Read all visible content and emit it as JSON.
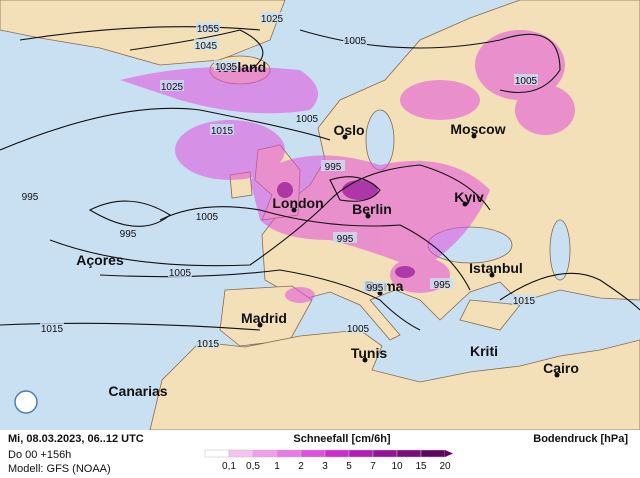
{
  "map": {
    "places": [
      "Iceland",
      "Oslo",
      "Moscow",
      "London",
      "Berlin",
      "Kyiv",
      "Açores",
      "Istanbul",
      "Roma",
      "Madrid",
      "Kriti",
      "Tunis",
      "Cairo",
      "Canarias"
    ],
    "isobar_labels": [
      "1055",
      "1045",
      "1025",
      "1035",
      "1025",
      "1005",
      "1015",
      "1005",
      "1005",
      "995",
      "995",
      "1005",
      "995",
      "995",
      "1005",
      "995",
      "995",
      "1015",
      "1005",
      "1015",
      "1015"
    ]
  },
  "footer": {
    "date": "Mi, 08.03.2023, 06..12 UTC",
    "run": "Do 00 +156h",
    "model": "Modell: GFS (NOAA)",
    "legend_title": "Schneefall [cm/6h]",
    "legend_labels": [
      "0,1",
      "0,5",
      "1",
      "2",
      "3",
      "5",
      "7",
      "10",
      "15",
      "20"
    ],
    "legend_colors": [
      "#ffffff",
      "#f7c4f2",
      "#f29ded",
      "#ec78e8",
      "#e24fde",
      "#cf2ccf",
      "#b21db8",
      "#951398",
      "#7a0c7e",
      "#5e0663"
    ],
    "pressure_title": "Bodendruck [hPa]"
  }
}
